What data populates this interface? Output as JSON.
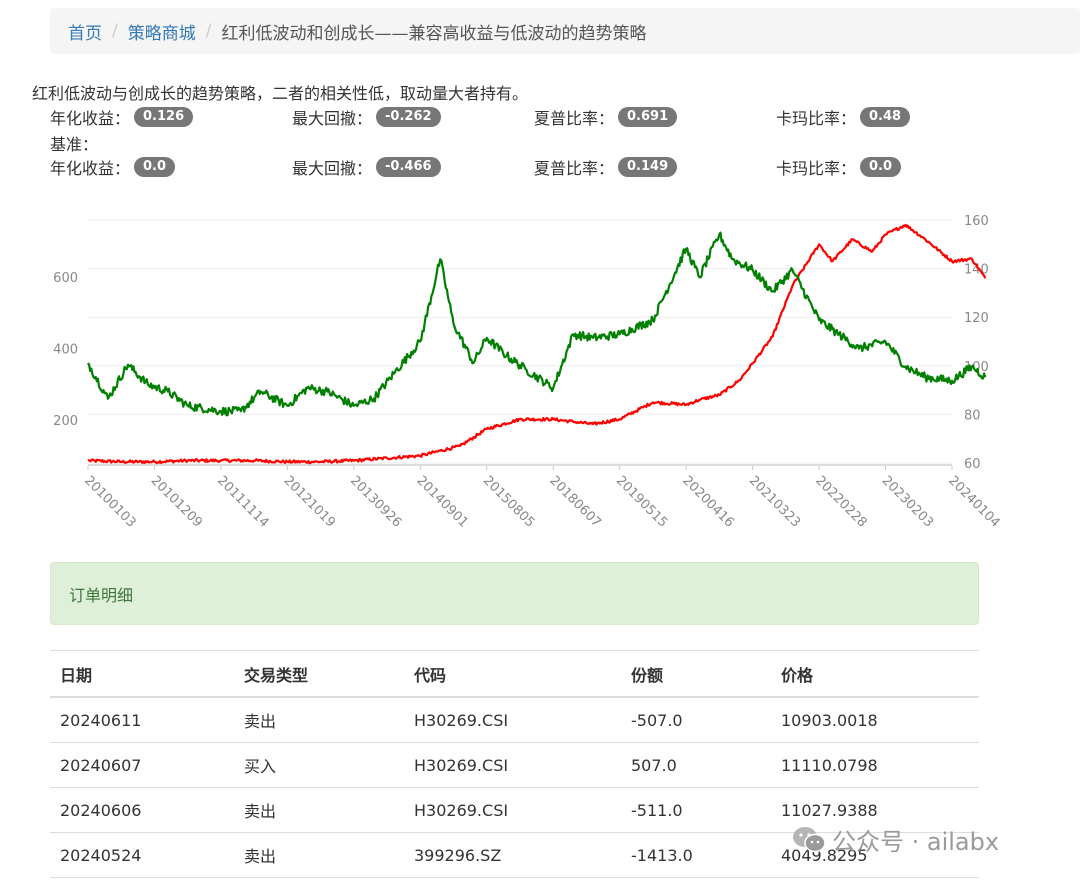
{
  "breadcrumb": {
    "home": "首页",
    "store": "策略商城",
    "current": "红利低波动和创成长——兼容高收益与低波动的趋势策略"
  },
  "description": "红利低波动与创成长的趋势策略，二者的相关性低，取动量大者持有。",
  "strategy_metrics": {
    "annual_label": "年化收益：",
    "annual": "0.126",
    "drawdown_label": "最大回撤：",
    "drawdown": "-0.262",
    "sharpe_label": "夏普比率：",
    "sharpe": "0.691",
    "calmar_label": "卡玛比率：",
    "calmar": "0.48"
  },
  "benchmark_label": "基准：",
  "benchmark_metrics": {
    "annual_label": "年化收益：",
    "annual": "0.0",
    "drawdown_label": "最大回撤：",
    "drawdown": "-0.466",
    "sharpe_label": "夏普比率：",
    "sharpe": "0.149",
    "calmar_label": "卡玛比率：",
    "calmar": "0.0"
  },
  "chart_data": {
    "type": "line",
    "title": "",
    "x_ticks": [
      "20100103",
      "20101209",
      "20111114",
      "20121019",
      "20130926",
      "20140901",
      "20150805",
      "20180607",
      "20190515",
      "20200416",
      "20210323",
      "20220228",
      "20230203",
      "20240104"
    ],
    "y_left_ticks": [
      200,
      400,
      600
    ],
    "y_right_ticks": [
      60,
      80,
      100,
      120,
      140,
      160
    ],
    "y_left_range": [
      80,
      760
    ],
    "y_right_range": [
      60,
      160
    ],
    "grid": true,
    "series": [
      {
        "color": "#ff0000",
        "axis": "right",
        "x_index": [
          0,
          0.5,
          1,
          1.5,
          2,
          2.5,
          3,
          3.5,
          4,
          4.5,
          5,
          5.3,
          5.6,
          6,
          6.5,
          7,
          7.3,
          7.6,
          8,
          8.5,
          9,
          9.2,
          9.5,
          9.8,
          10,
          10.3,
          10.6,
          11,
          11.2,
          11.5,
          11.8,
          12,
          12.3,
          12.6,
          13,
          13.3,
          13.5
        ],
        "values": [
          61,
          60.5,
          60.5,
          61,
          61,
          61,
          60.5,
          60.5,
          61,
          62,
          63,
          65,
          67,
          74,
          78,
          78,
          77,
          76,
          78,
          85,
          84,
          86,
          88,
          94,
          101,
          112,
          133,
          150,
          143,
          152,
          147,
          154,
          158,
          152,
          143,
          144,
          136
        ]
      },
      {
        "color": "#008000",
        "axis": "left",
        "x_index": [
          0,
          0.3,
          0.6,
          0.9,
          1.2,
          1.5,
          2,
          2.3,
          2.6,
          3,
          3.3,
          3.6,
          4,
          4.3,
          4.6,
          5,
          5.3,
          5.5,
          5.8,
          6,
          6.3,
          6.6,
          7,
          7.3,
          7.6,
          8,
          8.5,
          9,
          9.2,
          9.5,
          9.7,
          10,
          10.3,
          10.6,
          11,
          11.3,
          11.6,
          12,
          12.3,
          12.6,
          13,
          13.3,
          13.5
        ],
        "values": [
          360,
          260,
          355,
          300,
          280,
          240,
          225,
          225,
          280,
          240,
          290,
          280,
          240,
          260,
          330,
          420,
          650,
          470,
          360,
          430,
          380,
          340,
          290,
          440,
          430,
          440,
          480,
          680,
          600,
          720,
          650,
          620,
          560,
          620,
          480,
          440,
          400,
          420,
          350,
          320,
          310,
          350,
          320
        ]
      }
    ]
  },
  "orders": {
    "panel_title": "订单明细",
    "headers": [
      "日期",
      "交易类型",
      "代码",
      "份额",
      "价格"
    ],
    "rows": [
      [
        "20240611",
        "卖出",
        "H30269.CSI",
        "-507.0",
        "10903.0018"
      ],
      [
        "20240607",
        "买入",
        "H30269.CSI",
        "507.0",
        "11110.0798"
      ],
      [
        "20240606",
        "卖出",
        "H30269.CSI",
        "-511.0",
        "11027.9388"
      ],
      [
        "20240524",
        "卖出",
        "399296.SZ",
        "-1413.0",
        "4049.8295"
      ]
    ]
  },
  "watermark": "公众号 · ailabx",
  "watermark_icon": "wechat-icon"
}
